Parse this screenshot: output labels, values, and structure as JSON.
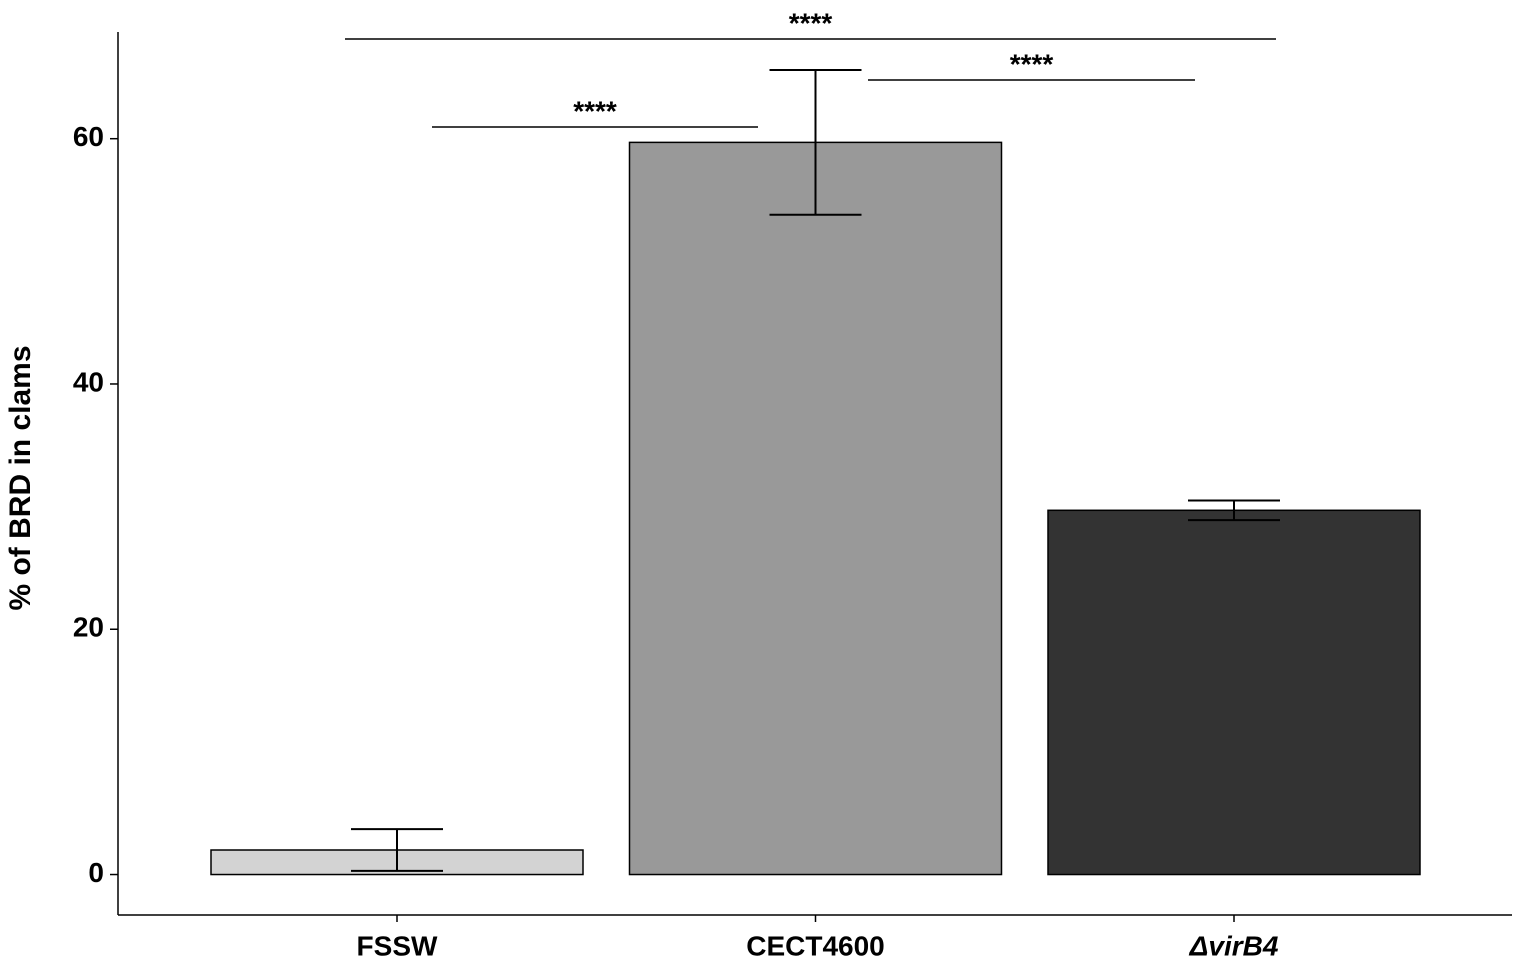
{
  "chart_data": {
    "type": "bar",
    "y_label": "% of BRD in clams",
    "categories": [
      "FSSW",
      "CECT4600",
      "ΔvirB4"
    ],
    "values": [
      2.0,
      59.7,
      29.7
    ],
    "errors": [
      1.7,
      5.9,
      0.8
    ],
    "colors": [
      "#d3d3d3",
      "#999999",
      "#333333"
    ],
    "ylim": [
      -3.3,
      68.7
    ],
    "yticks": [
      0,
      20,
      40,
      60
    ],
    "annotations": [
      "****",
      "****",
      "****"
    ]
  }
}
